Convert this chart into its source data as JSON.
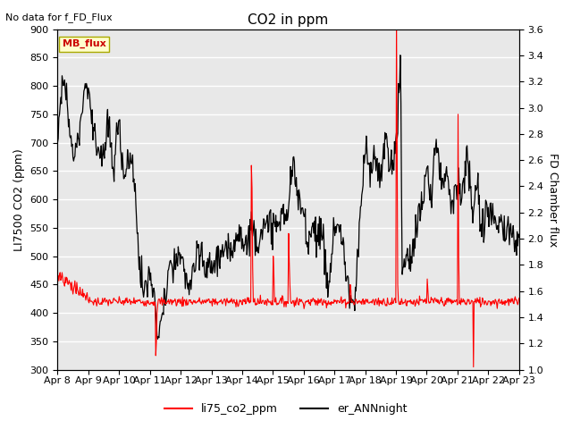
{
  "title": "CO2 in ppm",
  "top_left_text": "No data for f_FD_Flux",
  "ylabel_left": "LI7500 CO2 (ppm)",
  "ylabel_right": "FD Chamber flux",
  "ylim_left": [
    300,
    900
  ],
  "ylim_right": [
    1.0,
    3.6
  ],
  "yticks_left": [
    300,
    350,
    400,
    450,
    500,
    550,
    600,
    650,
    700,
    750,
    800,
    850,
    900
  ],
  "yticks_right": [
    1.0,
    1.2,
    1.4,
    1.6,
    1.8,
    2.0,
    2.2,
    2.4,
    2.6,
    2.8,
    3.0,
    3.2,
    3.4,
    3.6
  ],
  "xtick_labels": [
    "Apr 8",
    "Apr 9",
    "Apr 10",
    "Apr 11",
    "Apr 12",
    "Apr 13",
    "Apr 14",
    "Apr 15",
    "Apr 16",
    "Apr 17",
    "Apr 18",
    "Apr 19",
    "Apr 20",
    "Apr 21",
    "Apr 22",
    "Apr 23"
  ],
  "legend_labels": [
    "li75_co2_ppm",
    "er_ANNnight"
  ],
  "line_colors": [
    "red",
    "black"
  ],
  "mb_flux_label": "MB_flux",
  "mb_flux_color": "#cc0000",
  "mb_flux_bg": "#ffffcc",
  "bg_color": "#e8e8e8",
  "title_fontsize": 11,
  "label_fontsize": 9,
  "tick_fontsize": 8
}
